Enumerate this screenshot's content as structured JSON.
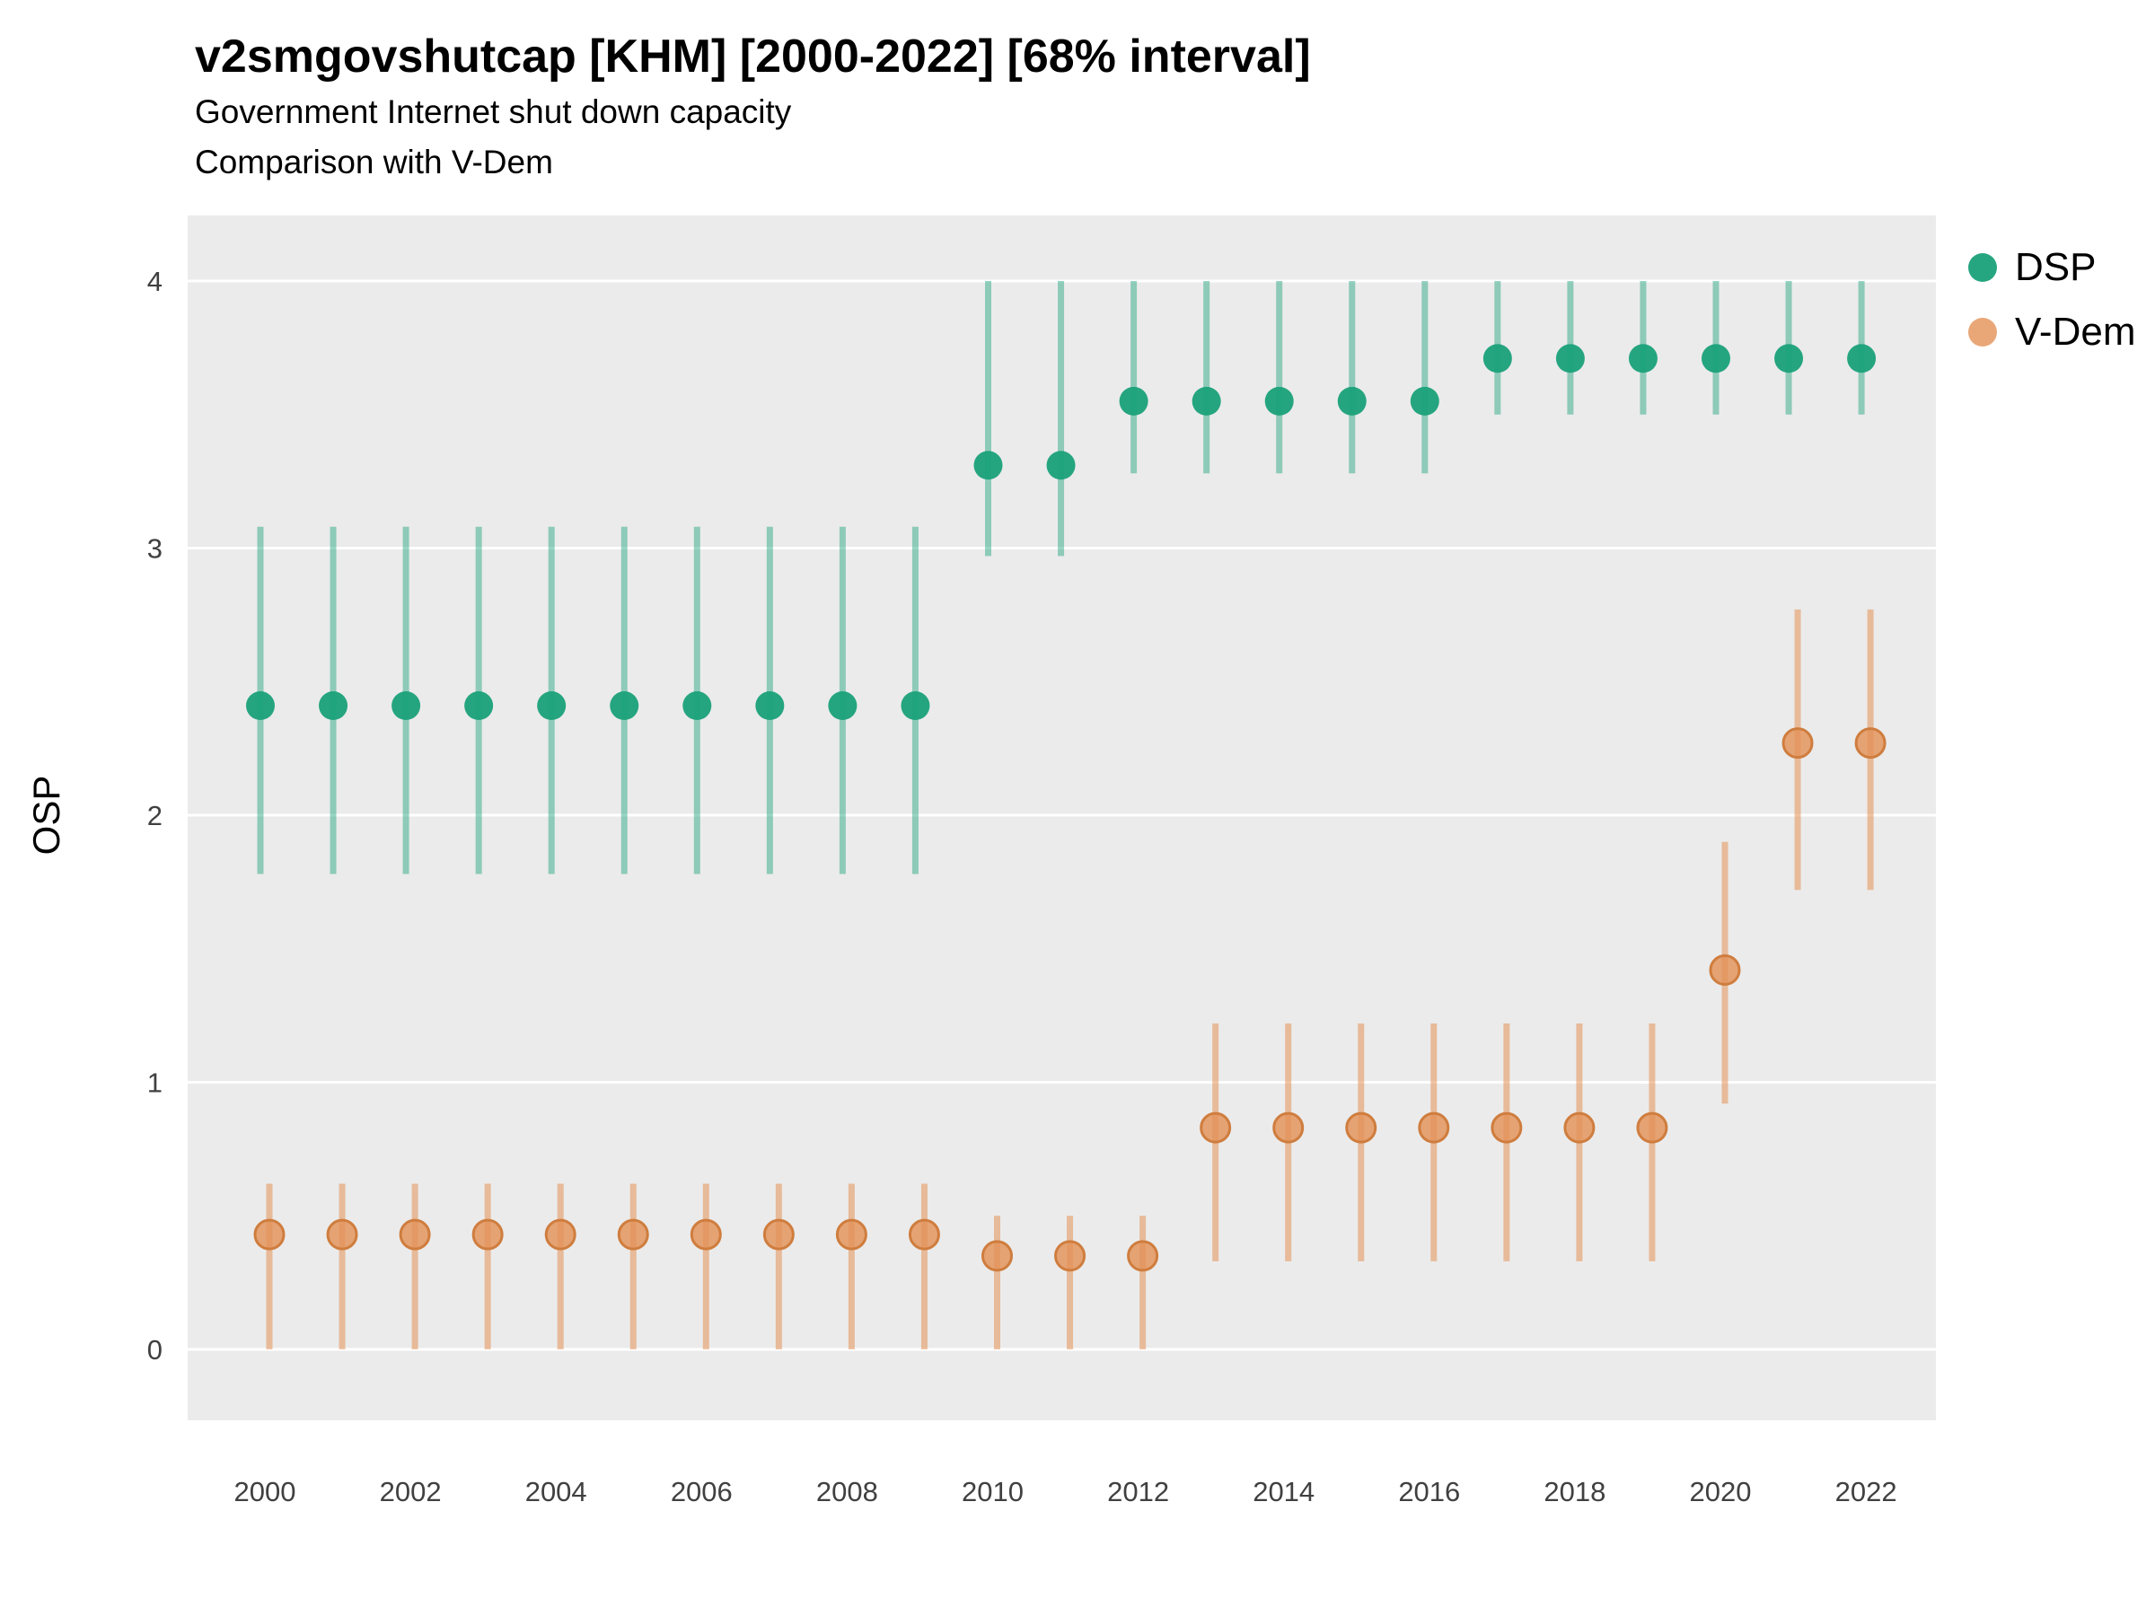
{
  "chart_data": {
    "type": "pointrange",
    "title": "v2smgovshutcap [KHM] [2000-2022] [68% interval]",
    "subtitle": [
      "Government Internet shut down capacity",
      "Comparison with V-Dem"
    ],
    "ylabel": "OSP",
    "xlabel": "",
    "ylim": [
      0,
      4
    ],
    "yticks": [
      0,
      1,
      2,
      3,
      4
    ],
    "xticks": [
      2000,
      2002,
      2004,
      2006,
      2008,
      2010,
      2012,
      2014,
      2016,
      2018,
      2020,
      2022
    ],
    "panel_background": "#ebebeb",
    "gridline_color": "#ffffff",
    "legend_position": "right",
    "interval_note": "68% interval",
    "series": [
      {
        "name": "DSP",
        "point_color": "#1aa179",
        "point_opacity": 0.95,
        "line_opacity": 0.45,
        "points": [
          {
            "x": 2000,
            "y": 2.41,
            "lo": 1.78,
            "hi": 3.08
          },
          {
            "x": 2001,
            "y": 2.41,
            "lo": 1.78,
            "hi": 3.08
          },
          {
            "x": 2002,
            "y": 2.41,
            "lo": 1.78,
            "hi": 3.08
          },
          {
            "x": 2003,
            "y": 2.41,
            "lo": 1.78,
            "hi": 3.08
          },
          {
            "x": 2004,
            "y": 2.41,
            "lo": 1.78,
            "hi": 3.08
          },
          {
            "x": 2005,
            "y": 2.41,
            "lo": 1.78,
            "hi": 3.08
          },
          {
            "x": 2006,
            "y": 2.41,
            "lo": 1.78,
            "hi": 3.08
          },
          {
            "x": 2007,
            "y": 2.41,
            "lo": 1.78,
            "hi": 3.08
          },
          {
            "x": 2008,
            "y": 2.41,
            "lo": 1.78,
            "hi": 3.08
          },
          {
            "x": 2009,
            "y": 2.41,
            "lo": 1.78,
            "hi": 3.08
          },
          {
            "x": 2010,
            "y": 3.31,
            "lo": 2.97,
            "hi": 4.0
          },
          {
            "x": 2011,
            "y": 3.31,
            "lo": 2.97,
            "hi": 4.0
          },
          {
            "x": 2012,
            "y": 3.55,
            "lo": 3.28,
            "hi": 4.0
          },
          {
            "x": 2013,
            "y": 3.55,
            "lo": 3.28,
            "hi": 4.0
          },
          {
            "x": 2014,
            "y": 3.55,
            "lo": 3.28,
            "hi": 4.0
          },
          {
            "x": 2015,
            "y": 3.55,
            "lo": 3.28,
            "hi": 4.0
          },
          {
            "x": 2016,
            "y": 3.55,
            "lo": 3.28,
            "hi": 4.0
          },
          {
            "x": 2017,
            "y": 3.71,
            "lo": 3.5,
            "hi": 4.0
          },
          {
            "x": 2018,
            "y": 3.71,
            "lo": 3.5,
            "hi": 4.0
          },
          {
            "x": 2019,
            "y": 3.71,
            "lo": 3.5,
            "hi": 4.0
          },
          {
            "x": 2020,
            "y": 3.71,
            "lo": 3.5,
            "hi": 4.0
          },
          {
            "x": 2021,
            "y": 3.71,
            "lo": 3.5,
            "hi": 4.0
          },
          {
            "x": 2022,
            "y": 3.71,
            "lo": 3.5,
            "hi": 4.0
          }
        ]
      },
      {
        "name": "V-Dem",
        "point_color": "#e49156",
        "point_stroke": "#cf7d3e",
        "point_opacity": 0.8,
        "line_opacity": 0.55,
        "points": [
          {
            "x": 2000,
            "y": 0.43,
            "lo": 0.0,
            "hi": 0.62
          },
          {
            "x": 2001,
            "y": 0.43,
            "lo": 0.0,
            "hi": 0.62
          },
          {
            "x": 2002,
            "y": 0.43,
            "lo": 0.0,
            "hi": 0.62
          },
          {
            "x": 2003,
            "y": 0.43,
            "lo": 0.0,
            "hi": 0.62
          },
          {
            "x": 2004,
            "y": 0.43,
            "lo": 0.0,
            "hi": 0.62
          },
          {
            "x": 2005,
            "y": 0.43,
            "lo": 0.0,
            "hi": 0.62
          },
          {
            "x": 2006,
            "y": 0.43,
            "lo": 0.0,
            "hi": 0.62
          },
          {
            "x": 2007,
            "y": 0.43,
            "lo": 0.0,
            "hi": 0.62
          },
          {
            "x": 2008,
            "y": 0.43,
            "lo": 0.0,
            "hi": 0.62
          },
          {
            "x": 2009,
            "y": 0.43,
            "lo": 0.0,
            "hi": 0.62
          },
          {
            "x": 2010,
            "y": 0.35,
            "lo": 0.0,
            "hi": 0.5
          },
          {
            "x": 2011,
            "y": 0.35,
            "lo": 0.0,
            "hi": 0.5
          },
          {
            "x": 2012,
            "y": 0.35,
            "lo": 0.0,
            "hi": 0.5
          },
          {
            "x": 2013,
            "y": 0.83,
            "lo": 0.33,
            "hi": 1.22
          },
          {
            "x": 2014,
            "y": 0.83,
            "lo": 0.33,
            "hi": 1.22
          },
          {
            "x": 2015,
            "y": 0.83,
            "lo": 0.33,
            "hi": 1.22
          },
          {
            "x": 2016,
            "y": 0.83,
            "lo": 0.33,
            "hi": 1.22
          },
          {
            "x": 2017,
            "y": 0.83,
            "lo": 0.33,
            "hi": 1.22
          },
          {
            "x": 2018,
            "y": 0.83,
            "lo": 0.33,
            "hi": 1.22
          },
          {
            "x": 2019,
            "y": 0.83,
            "lo": 0.33,
            "hi": 1.22
          },
          {
            "x": 2020,
            "y": 1.42,
            "lo": 0.92,
            "hi": 1.9
          },
          {
            "x": 2021,
            "y": 2.27,
            "lo": 1.72,
            "hi": 2.77
          },
          {
            "x": 2022,
            "y": 2.27,
            "lo": 1.72,
            "hi": 2.77
          }
        ]
      }
    ]
  }
}
